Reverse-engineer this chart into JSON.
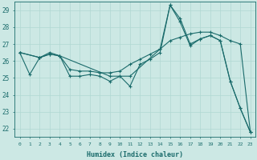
{
  "xlabel": "Humidex (Indice chaleur)",
  "bg_color": "#cce8e4",
  "grid_color": "#b0d8d2",
  "line_color": "#1a6b6b",
  "xlim": [
    -0.5,
    23.5
  ],
  "ylim": [
    21.5,
    29.5
  ],
  "yticks": [
    22,
    23,
    24,
    25,
    26,
    27,
    28,
    29
  ],
  "xticks": [
    0,
    1,
    2,
    3,
    4,
    5,
    6,
    7,
    8,
    9,
    10,
    11,
    12,
    13,
    14,
    15,
    16,
    17,
    18,
    19,
    20,
    21,
    22,
    23
  ],
  "line1_x": [
    0,
    1,
    2,
    3,
    4,
    5,
    6,
    7,
    8,
    9,
    10,
    11,
    12,
    13,
    14,
    15,
    16,
    17,
    18,
    19,
    20,
    21,
    22,
    23
  ],
  "line1_y": [
    26.5,
    25.2,
    26.2,
    26.5,
    26.3,
    25.1,
    25.1,
    25.2,
    25.1,
    24.8,
    25.1,
    24.5,
    25.8,
    26.1,
    26.5,
    29.3,
    28.3,
    26.9,
    27.3,
    27.5,
    27.2,
    24.8,
    23.2,
    21.8
  ],
  "line2_x": [
    0,
    2,
    3,
    4,
    5,
    6,
    7,
    8,
    9,
    10,
    11,
    12,
    13,
    14,
    15,
    16,
    17,
    18,
    19,
    20,
    21,
    22,
    23
  ],
  "line2_y": [
    26.5,
    26.2,
    26.4,
    26.3,
    25.5,
    25.4,
    25.4,
    25.3,
    25.3,
    25.4,
    25.8,
    26.1,
    26.4,
    26.7,
    27.2,
    27.4,
    27.6,
    27.7,
    27.7,
    27.5,
    27.2,
    27.0,
    21.8
  ],
  "line3_x": [
    0,
    2,
    3,
    4,
    9,
    10,
    11,
    14,
    15,
    16,
    17,
    18,
    19,
    20,
    21,
    22,
    23
  ],
  "line3_y": [
    26.5,
    26.2,
    26.4,
    26.3,
    25.1,
    25.1,
    25.1,
    26.7,
    29.3,
    28.5,
    27.0,
    27.3,
    27.5,
    27.2,
    24.8,
    23.2,
    21.8
  ]
}
